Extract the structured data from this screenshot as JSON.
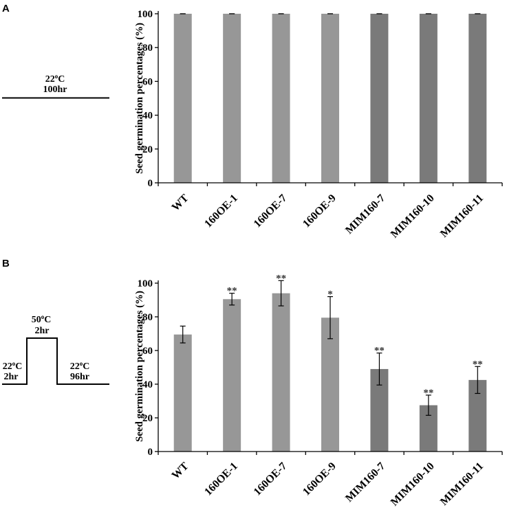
{
  "panels": [
    {
      "label": "A",
      "condition": {
        "steps": [
          {
            "temp_value": "22",
            "temp_sup": "o",
            "temp_unit": "C",
            "duration": "100hr"
          }
        ]
      }
    },
    {
      "label": "B",
      "condition": {
        "steps": [
          {
            "temp_value": "22",
            "temp_sup": "o",
            "temp_unit": "C",
            "duration": "2hr"
          },
          {
            "temp_value": "50",
            "temp_sup": "o",
            "temp_unit": "C",
            "duration": "2hr"
          },
          {
            "temp_value": "22",
            "temp_sup": "o",
            "temp_unit": "C",
            "duration": "96hr"
          }
        ]
      }
    }
  ],
  "colors": {
    "light_bar": "#979797",
    "dark_bar": "#7a7a7a",
    "axis": "#000000",
    "error_bar": "#000000",
    "significance": "#333333"
  },
  "chart_data": [
    {
      "type": "bar",
      "panel": "A",
      "title": "",
      "xlabel": "",
      "ylabel": "Seed germination percentages (%)",
      "ylim": [
        0,
        100
      ],
      "yticks": [
        0,
        20,
        40,
        60,
        80,
        100
      ],
      "grid": false,
      "categories": [
        "WT",
        "160OE-1",
        "160OE-7",
        "160OE-9",
        "MIM160-7",
        "MIM160-10",
        "MIM160-11"
      ],
      "values": [
        100,
        100,
        100,
        100,
        100,
        100,
        100
      ],
      "errors": [
        0,
        0,
        0,
        0,
        0,
        0,
        0
      ],
      "significance": [
        "",
        "",
        "",
        "",
        "",
        "",
        ""
      ],
      "bar_shade": [
        "light",
        "light",
        "light",
        "light",
        "dark",
        "dark",
        "dark"
      ]
    },
    {
      "type": "bar",
      "panel": "B",
      "title": "",
      "xlabel": "",
      "ylabel": "Seed germination percentages (%)",
      "ylim": [
        0,
        100
      ],
      "yticks": [
        0,
        20,
        40,
        60,
        80,
        100
      ],
      "grid": false,
      "categories": [
        "WT",
        "160OE-1",
        "160OE-7",
        "160OE-9",
        "MIM160-7",
        "MIM160-10",
        "MIM160-11"
      ],
      "values": [
        69.5,
        90.5,
        94,
        79.5,
        49,
        27.5,
        42.5
      ],
      "errors": [
        5,
        3.5,
        7.5,
        12.5,
        9.5,
        6,
        8
      ],
      "significance": [
        "",
        "**",
        "**",
        "*",
        "**",
        "**",
        "**"
      ],
      "bar_shade": [
        "light",
        "light",
        "light",
        "light",
        "dark",
        "dark",
        "dark"
      ]
    }
  ]
}
